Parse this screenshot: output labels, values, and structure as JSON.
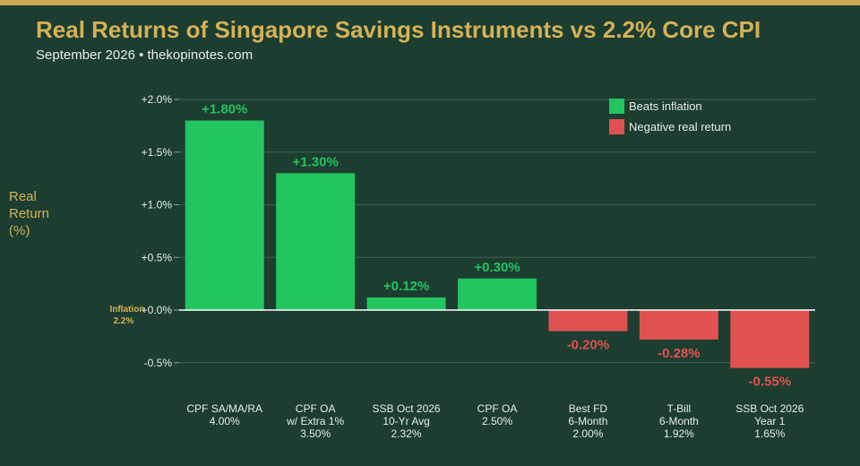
{
  "header": {
    "title": "Real Returns of Singapore Savings Instruments vs 2.2% Core CPI",
    "subtitle": "September 2026  •  thekopinotes.com"
  },
  "chart_data": {
    "type": "bar",
    "ylabel_lines": [
      "Real",
      "Return",
      "(%)"
    ],
    "ylim": [
      -0.65,
      2.0
    ],
    "yticks": [
      -0.5,
      0.0,
      0.5,
      1.0,
      1.5,
      2.0
    ],
    "ytick_labels": [
      "-0.5%",
      "+0.0%",
      "+0.5%",
      "+1.0%",
      "+1.5%",
      "+2.0%"
    ],
    "grid": true,
    "baseline_label": [
      "Inflation",
      "2.2%"
    ],
    "categories": [
      [
        "CPF SA/MA/RA",
        "4.00%"
      ],
      [
        "CPF OA",
        "w/ Extra 1%",
        "3.50%"
      ],
      [
        "SSB Oct 2026",
        "10-Yr Avg",
        "2.32%"
      ],
      [
        "CPF OA",
        "2.50%"
      ],
      [
        "Best FD",
        "6-Month",
        "2.00%"
      ],
      [
        "T-Bill",
        "6-Month",
        "1.92%"
      ],
      [
        "SSB Oct 2026",
        "Year 1",
        "1.65%"
      ]
    ],
    "values": [
      1.8,
      1.3,
      0.12,
      0.3,
      -0.2,
      -0.28,
      -0.55
    ],
    "value_labels": [
      "+1.80%",
      "+1.30%",
      "+0.12%",
      "+0.30%",
      "-0.20%",
      "-0.28%",
      "-0.55%"
    ],
    "legend": {
      "placement": "top-right",
      "items": [
        {
          "label": "Beats inflation",
          "color": "#22c55e"
        },
        {
          "label": "Negative real return",
          "color": "#e05252"
        }
      ]
    },
    "colors": {
      "positive": "#22c55e",
      "negative": "#e05252"
    }
  }
}
